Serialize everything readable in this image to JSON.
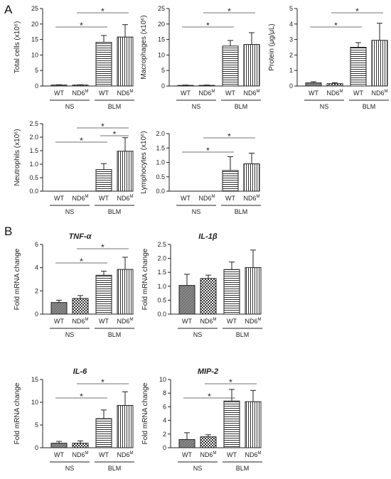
{
  "panels": {
    "a_letter": "A",
    "b_letter": "B"
  },
  "group_labels": [
    "NS",
    "BLM"
  ],
  "chart_data": [
    {
      "type": "bar",
      "panel": "A",
      "title": "",
      "ylabel": "Total cells (x10⁶)",
      "categories": [
        "WT",
        "ND6ᴹ",
        "WT",
        "ND6ᴹ"
      ],
      "groups": [
        "NS",
        "BLM"
      ],
      "values": [
        0.3,
        0.3,
        14.1,
        15.8
      ],
      "errors": [
        0.1,
        0.1,
        2.2,
        4.0
      ],
      "ylim": [
        0,
        25
      ],
      "yticks": [
        "0",
        "5",
        "10",
        "15",
        "20",
        "25"
      ],
      "significance": [
        "*",
        "*"
      ]
    },
    {
      "type": "bar",
      "panel": "A",
      "title": "",
      "ylabel": "Macrophages (x10⁶)",
      "categories": [
        "WT",
        "ND6ᴹ",
        "WT",
        "ND6ᴹ"
      ],
      "groups": [
        "NS",
        "BLM"
      ],
      "values": [
        0.2,
        0.2,
        12.9,
        13.4
      ],
      "errors": [
        0.1,
        0.1,
        1.8,
        3.8
      ],
      "ylim": [
        0,
        25
      ],
      "yticks": [
        "0",
        "5",
        "10",
        "15",
        "20",
        "25"
      ],
      "significance": [
        "*",
        "*"
      ]
    },
    {
      "type": "bar",
      "panel": "A",
      "title": "",
      "ylabel": "Protein (μg/μL)",
      "categories": [
        "WT",
        "ND6ᴹ",
        "WT",
        "ND6ᴹ"
      ],
      "groups": [
        "NS",
        "BLM"
      ],
      "values": [
        0.2,
        0.15,
        2.5,
        2.95
      ],
      "errors": [
        0.08,
        0.06,
        0.3,
        1.1
      ],
      "ylim": [
        0,
        5
      ],
      "yticks": [
        "0",
        "1",
        "2",
        "3",
        "4",
        "5"
      ],
      "significance": [
        "*",
        "*"
      ]
    },
    {
      "type": "bar",
      "panel": "A",
      "title": "",
      "ylabel": "Neutrophils (x10⁶)",
      "categories": [
        "WT",
        "ND6ᴹ",
        "WT",
        "ND6ᴹ"
      ],
      "groups": [
        "NS",
        "BLM"
      ],
      "values": [
        0.0,
        0.0,
        0.8,
        1.48
      ],
      "errors": [
        0.0,
        0.0,
        0.22,
        0.5
      ],
      "ylim": [
        0,
        2.5
      ],
      "yticks": [
        "0.0",
        "0.5",
        "1.0",
        "1.5",
        "2.0",
        "2.5"
      ],
      "significance": [
        "*",
        "*",
        "*"
      ]
    },
    {
      "type": "bar",
      "panel": "A",
      "title": "",
      "ylabel": "Lymphocytes (x10⁶)",
      "categories": [
        "WT",
        "ND6ᴹ",
        "WT",
        "ND6ᴹ"
      ],
      "groups": [
        "NS",
        "BLM"
      ],
      "values": [
        0.0,
        0.0,
        0.72,
        0.95
      ],
      "errors": [
        0.0,
        0.0,
        0.48,
        0.37
      ],
      "ylim": [
        0,
        2.0
      ],
      "yticks": [
        "0.0",
        "0.5",
        "1.0",
        "1.5",
        "2.0"
      ],
      "significance": [
        "*",
        "*"
      ]
    },
    {
      "type": "bar",
      "panel": "B",
      "title": "TNF-α",
      "ylabel": "Fold mRNA change",
      "categories": [
        "WT",
        "ND6ᴹ",
        "WT",
        "ND6ᴹ"
      ],
      "groups": [
        "NS",
        "BLM"
      ],
      "values": [
        1.0,
        1.35,
        3.35,
        3.85
      ],
      "errors": [
        0.2,
        0.25,
        0.35,
        1.05
      ],
      "ylim": [
        0,
        6
      ],
      "yticks": [
        "0",
        "2",
        "4",
        "6"
      ],
      "significance": [
        "*",
        "*"
      ]
    },
    {
      "type": "bar",
      "panel": "B",
      "title": "IL-1β",
      "ylabel": "Fold mRNA change",
      "categories": [
        "WT",
        "ND6ᴹ",
        "WT",
        "ND6ᴹ"
      ],
      "groups": [
        "NS",
        "BLM"
      ],
      "values": [
        1.03,
        1.28,
        1.6,
        1.67
      ],
      "errors": [
        0.4,
        0.12,
        0.27,
        0.63
      ],
      "ylim": [
        0,
        2.5
      ],
      "yticks": [
        "0.0",
        "0.5",
        "1.0",
        "1.5",
        "2.0",
        "2.5"
      ],
      "significance": []
    },
    {
      "type": "bar",
      "panel": "B",
      "title": "IL-6",
      "ylabel": "Fold mRNA change",
      "categories": [
        "WT",
        "ND6ᴹ",
        "WT",
        "ND6ᴹ"
      ],
      "groups": [
        "NS",
        "BLM"
      ],
      "values": [
        1.0,
        1.0,
        6.4,
        9.3
      ],
      "errors": [
        0.4,
        0.5,
        1.9,
        3.0
      ],
      "ylim": [
        0,
        15
      ],
      "yticks": [
        "0",
        "5",
        "10",
        "15"
      ],
      "significance": [
        "*",
        "*"
      ]
    },
    {
      "type": "bar",
      "panel": "B",
      "title": "MIP-2",
      "ylabel": "Fold mRNA change",
      "categories": [
        "WT",
        "ND6ᴹ",
        "WT",
        "ND6ᴹ"
      ],
      "groups": [
        "NS",
        "BLM"
      ],
      "values": [
        1.2,
        1.6,
        6.85,
        6.75
      ],
      "errors": [
        1.0,
        0.3,
        1.7,
        1.65
      ],
      "ylim": [
        0,
        10
      ],
      "yticks": [
        "0",
        "2",
        "4",
        "6",
        "8",
        "10"
      ],
      "significance": [
        "*",
        "*"
      ]
    }
  ]
}
